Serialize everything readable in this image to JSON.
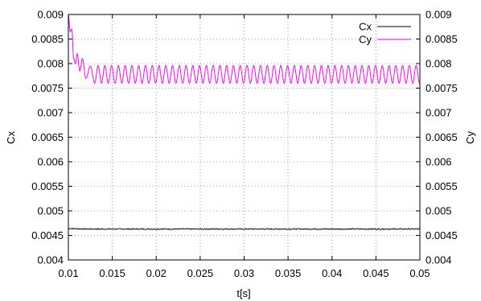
{
  "chart_data": {
    "type": "line",
    "xlabel": "t[s]",
    "ylabel": "Cx",
    "y2label": "Cy",
    "xlim": [
      0.01,
      0.05
    ],
    "ylim": [
      0.004,
      0.009
    ],
    "grid": true,
    "legend_position": "top-right",
    "x_ticks": [
      "0.01",
      "0.015",
      "0.02",
      "0.025",
      "0.03",
      "0.035",
      "0.04",
      "0.045",
      "0.05"
    ],
    "x_tick_values": [
      0.01,
      0.015,
      0.02,
      0.025,
      0.03,
      0.035,
      0.04,
      0.045,
      0.05
    ],
    "y_ticks": [
      "0.004",
      "0.0045",
      "0.005",
      "0.0055",
      "0.006",
      "0.0065",
      "0.007",
      "0.0075",
      "0.008",
      "0.0085",
      "0.009"
    ],
    "y_tick_values": [
      0.004,
      0.0045,
      0.005,
      0.0055,
      0.006,
      0.0065,
      0.007,
      0.0075,
      0.008,
      0.0085,
      0.009
    ],
    "series": [
      {
        "name": "Cx",
        "color": "#000000",
        "x": [
          0.01,
          0.012,
          0.015,
          0.02,
          0.025,
          0.03,
          0.035,
          0.04,
          0.045,
          0.05
        ],
        "y": [
          0.00464,
          0.00463,
          0.00463,
          0.00463,
          0.00463,
          0.00463,
          0.00463,
          0.00463,
          0.00463,
          0.00463
        ],
        "noise_amplitude": 1e-05
      },
      {
        "name": "Cy",
        "color": "#ff00ff",
        "x": [
          0.01,
          0.0102,
          0.0104,
          0.0106,
          0.0108,
          0.011,
          0.0113,
          0.0116,
          0.012,
          0.0125,
          0.013,
          0.05
        ],
        "y": [
          0.009,
          0.00865,
          0.0087,
          0.0081,
          0.008,
          0.0082,
          0.00785,
          0.0081,
          0.0077,
          0.00795,
          0.0076,
          0.0078
        ],
        "oscillation_amplitude": 0.00018,
        "oscillation_center": 0.00778,
        "oscillation_period": 0.00077
      }
    ]
  }
}
